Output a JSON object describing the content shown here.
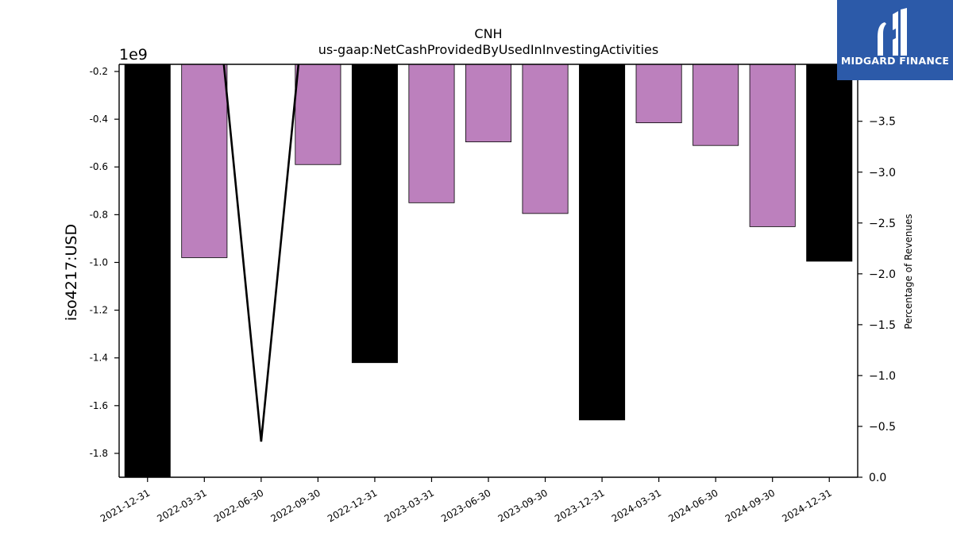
{
  "chart_data": {
    "type": "bar",
    "title": "CNH",
    "subtitle": "us-gaap:NetCashProvidedByUsedInInvestingActivities",
    "ylabel": "iso4217:USD",
    "y_offset_label": "1e9",
    "y2label": "Percentage of Revenues",
    "ylim": [
      -1.9,
      -0.17
    ],
    "y2lim": [
      0.0,
      -4.06
    ],
    "yticks": [
      "-0.2",
      "-0.4",
      "-0.6",
      "-0.8",
      "-1.0",
      "-1.2",
      "-1.4",
      "-1.6",
      "-1.8"
    ],
    "y2ticks": [
      "-4.0",
      "−3.5",
      "−3.0",
      "−2.5",
      "−2.0",
      "−1.5",
      "−1.0",
      "−0.5",
      "0.0"
    ],
    "categories": [
      "2021-12-31",
      "2022-03-31",
      "2022-06-30",
      "2022-09-30",
      "2022-12-31",
      "2023-03-31",
      "2023-06-30",
      "2023-09-30",
      "2023-12-31",
      "2024-03-31",
      "2024-06-30",
      "2024-09-30",
      "2024-12-31"
    ],
    "values": [
      -2.1,
      -0.98,
      null,
      -0.59,
      -1.42,
      -0.75,
      -0.495,
      -0.795,
      -1.66,
      -0.415,
      -0.51,
      -0.85,
      -0.995
    ],
    "bar_kind": [
      "annual",
      "quarterly",
      "none",
      "quarterly",
      "annual",
      "quarterly",
      "quarterly",
      "quarterly",
      "annual",
      "quarterly",
      "quarterly",
      "quarterly",
      "annual"
    ],
    "line_series": {
      "axis": "right",
      "points": [
        {
          "category": "2022-03-31",
          "value": -6.0
        },
        {
          "category": "2022-06-30",
          "value": -0.35
        },
        {
          "category": "2022-09-30",
          "value": -6.0
        }
      ]
    },
    "colors": {
      "annual": "#000000",
      "quarterly": "#bc80bd",
      "line": "#000000"
    }
  },
  "logo": {
    "text": "MIDGARD FINANCE",
    "color": "#2c5aa9"
  }
}
